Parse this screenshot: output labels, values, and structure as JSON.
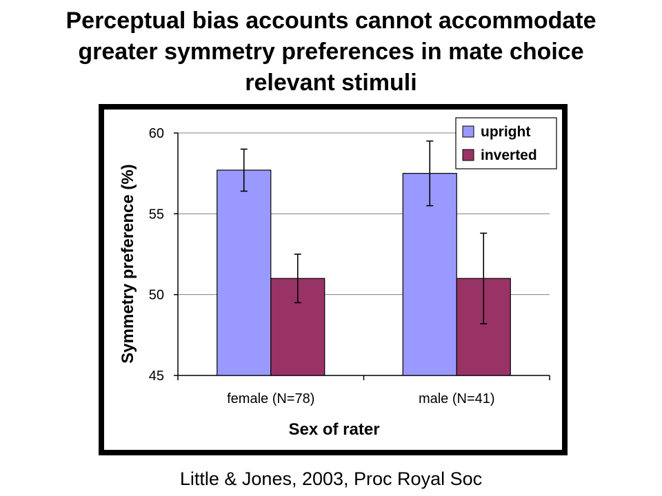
{
  "slide": {
    "title_lines": [
      "Perceptual bias accounts cannot accommodate",
      "greater symmetry preferences in mate choice",
      "relevant stimuli"
    ],
    "citation": "Little & Jones, 2003, Proc Royal Soc"
  },
  "chart_data": {
    "type": "bar",
    "title": "",
    "xlabel": "Sex of rater",
    "ylabel": "Symmetry preference (%)",
    "categories": [
      "female (N=78)",
      "male (N=41)"
    ],
    "series": [
      {
        "name": "upright",
        "color": "#9999ff",
        "values": [
          57.7,
          57.5
        ],
        "error": [
          1.3,
          2.0
        ]
      },
      {
        "name": "inverted",
        "color": "#993366",
        "values": [
          51.0,
          51.0
        ],
        "error": [
          1.5,
          2.8
        ]
      }
    ],
    "ylim": [
      45,
      60
    ],
    "yticks": [
      45,
      50,
      55,
      60
    ],
    "grid": true,
    "legend_position": "top-right"
  }
}
